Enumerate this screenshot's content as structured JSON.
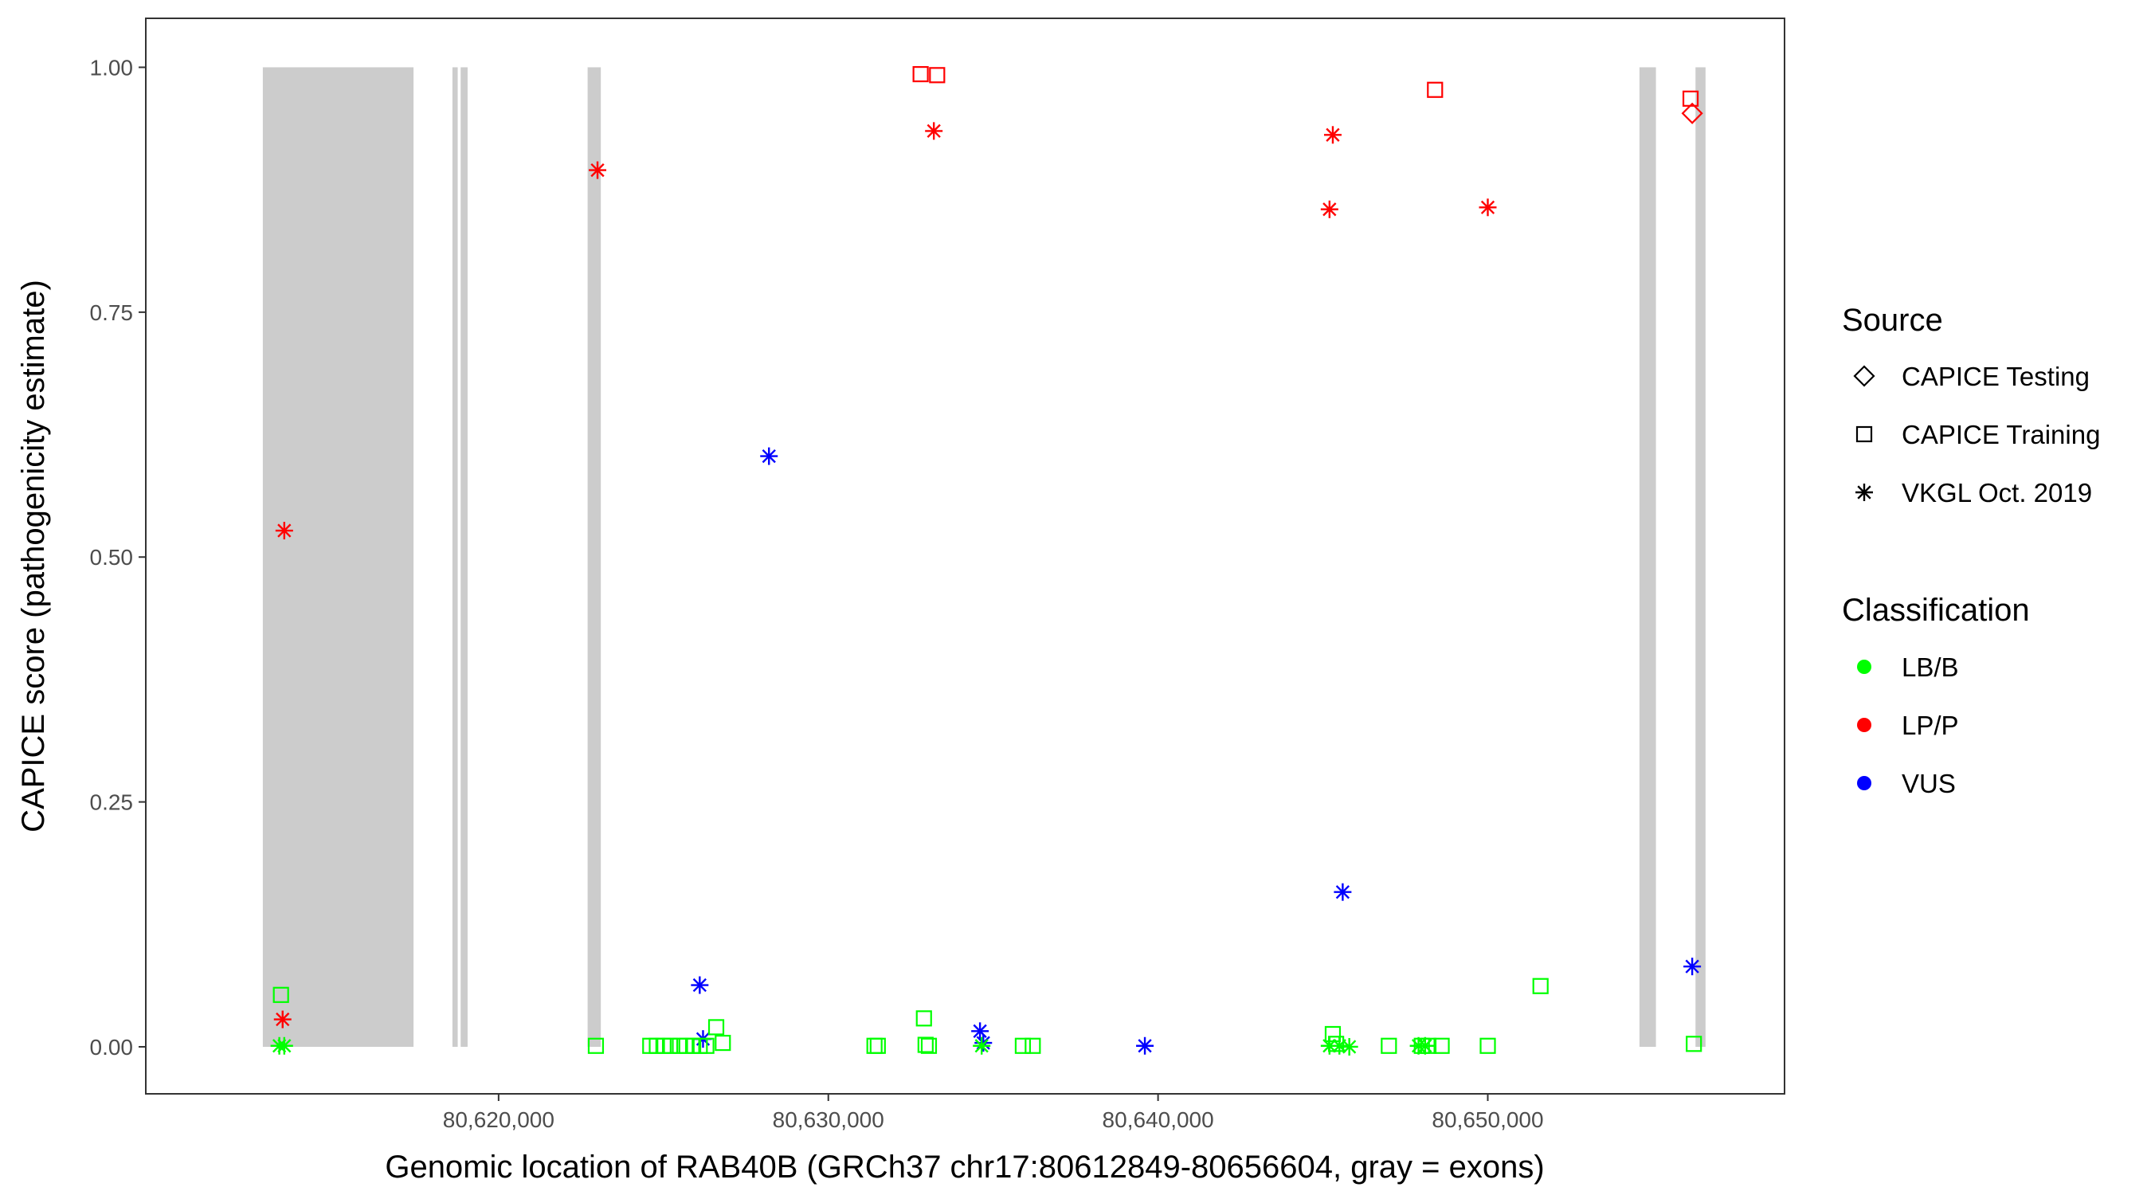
{
  "chart_data": {
    "type": "scatter",
    "xlabel": "Genomic location of RAB40B (GRCh37 chr17:80612849-80656604, gray = exons)",
    "ylabel": "CAPICE score (pathogenicity estimate)",
    "xlim": [
      80609300,
      80659000
    ],
    "ylim": [
      -0.048,
      1.05
    ],
    "x_ticks": [
      80620000,
      80630000,
      80640000,
      80650000
    ],
    "x_tick_labels": [
      "80,620,000",
      "80,630,000",
      "80,640,000",
      "80,650,000"
    ],
    "y_ticks": [
      0,
      0.25,
      0.5,
      0.75,
      1
    ],
    "y_tick_labels": [
      "0.00",
      "0.25",
      "0.50",
      "0.75",
      "1.00"
    ],
    "grid": false,
    "exons": [
      {
        "start": 80612849,
        "end": 80617420
      },
      {
        "start": 80618600,
        "end": 80618760
      },
      {
        "start": 80618850,
        "end": 80619060
      },
      {
        "start": 80622700,
        "end": 80623100
      },
      {
        "start": 80654600,
        "end": 80655100
      },
      {
        "start": 80656300,
        "end": 80656604
      }
    ],
    "legend": {
      "position": "right",
      "source_title": "Source",
      "source_entries": [
        {
          "label": "CAPICE Testing",
          "shape": "diamond"
        },
        {
          "label": "CAPICE Training",
          "shape": "square"
        },
        {
          "label": "VKGL Oct. 2019",
          "shape": "asterisk"
        }
      ],
      "class_title": "Classification",
      "class_entries": [
        {
          "label": "LB/B",
          "color": "#00ff00"
        },
        {
          "label": "LP/P",
          "color": "#ff0000"
        },
        {
          "label": "VUS",
          "color": "#0000ff"
        }
      ]
    },
    "series": [
      {
        "source": "CAPICE Testing",
        "classification": "LP/P",
        "points": [
          [
            80656200,
            0.953
          ]
        ]
      },
      {
        "source": "CAPICE Training",
        "classification": "LP/P",
        "points": [
          [
            80632800,
            0.993
          ],
          [
            80633300,
            0.992
          ],
          [
            80648400,
            0.977
          ],
          [
            80656150,
            0.968
          ]
        ]
      },
      {
        "source": "VKGL Oct. 2019",
        "classification": "LP/P",
        "points": [
          [
            80613500,
            0.527
          ],
          [
            80613450,
            0.028
          ],
          [
            80623000,
            0.895
          ],
          [
            80633200,
            0.935
          ],
          [
            80645300,
            0.931
          ],
          [
            80645200,
            0.855
          ],
          [
            80650000,
            0.857
          ]
        ]
      },
      {
        "source": "VKGL Oct. 2019",
        "classification": "VUS",
        "points": [
          [
            80628200,
            0.603
          ],
          [
            80626100,
            0.063
          ],
          [
            80626200,
            0.008
          ],
          [
            80634600,
            0.016
          ],
          [
            80634700,
            0.004
          ],
          [
            80639600,
            0.001
          ],
          [
            80645600,
            0.158
          ],
          [
            80656200,
            0.082
          ]
        ]
      },
      {
        "source": "CAPICE Training",
        "classification": "LB/B",
        "points": [
          [
            80613400,
            0.053
          ],
          [
            80622950,
            0.001
          ],
          [
            80624600,
            0.001
          ],
          [
            80624800,
            0.001
          ],
          [
            80625000,
            0.001
          ],
          [
            80625200,
            0.001
          ],
          [
            80625500,
            0.001
          ],
          [
            80625700,
            0.001
          ],
          [
            80625900,
            0.001
          ],
          [
            80626100,
            0.001
          ],
          [
            80626300,
            0.001
          ],
          [
            80626600,
            0.02
          ],
          [
            80626800,
            0.004
          ],
          [
            80631400,
            0.001
          ],
          [
            80631500,
            0.001
          ],
          [
            80632900,
            0.029
          ],
          [
            80632950,
            0.002
          ],
          [
            80633050,
            0.001
          ],
          [
            80635900,
            0.001
          ],
          [
            80636200,
            0.001
          ],
          [
            80645300,
            0.013
          ],
          [
            80645400,
            0.003
          ],
          [
            80647000,
            0.001
          ],
          [
            80648000,
            0.001
          ],
          [
            80648200,
            0.001
          ],
          [
            80648600,
            0.001
          ],
          [
            80650000,
            0.001
          ],
          [
            80651600,
            0.062
          ],
          [
            80656250,
            0.003
          ]
        ]
      },
      {
        "source": "VKGL Oct. 2019",
        "classification": "LB/B",
        "points": [
          [
            80613350,
            0.001
          ],
          [
            80613500,
            0.001
          ],
          [
            80634650,
            0.001
          ],
          [
            80645200,
            0.001
          ],
          [
            80645500,
            0.001
          ],
          [
            80645800,
            0.0
          ],
          [
            80647900,
            0.001
          ],
          [
            80648100,
            0.001
          ]
        ]
      }
    ]
  }
}
